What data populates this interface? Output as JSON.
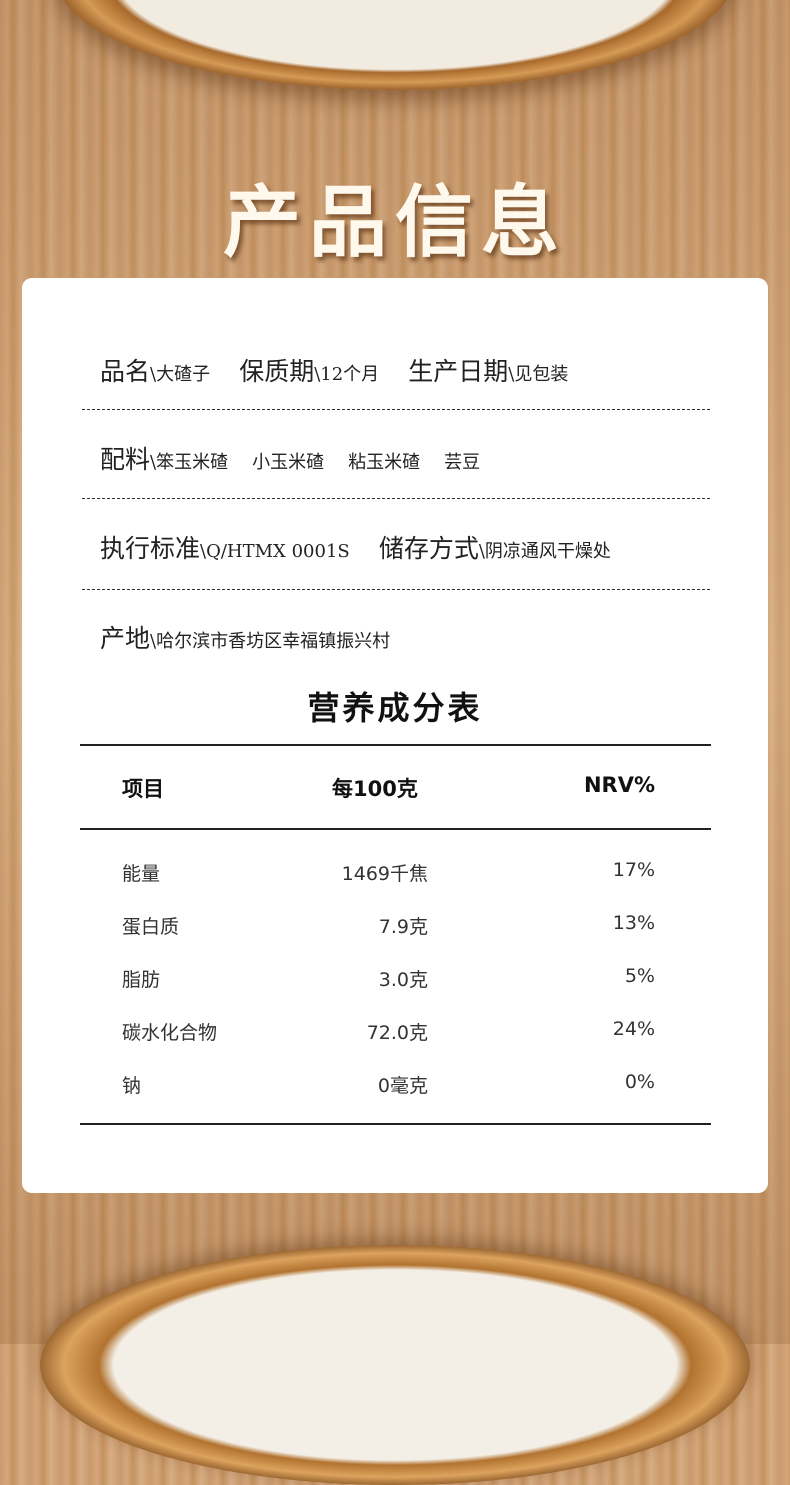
{
  "title": "产品信息",
  "info": {
    "name_label": "品名",
    "name": "大碴子",
    "shelf_label": "保质期",
    "shelf": "12个月",
    "date_label": "生产日期",
    "date": "见包装",
    "ingredients_label": "配料",
    "ingredients": [
      "笨玉米碴",
      "小玉米碴",
      "粘玉米碴",
      "芸豆"
    ],
    "standard_label": "执行标准",
    "standard": "Q/HTMX 0001S",
    "storage_label": "储存方式",
    "storage": "阴凉通风干燥处",
    "origin_label": "产地",
    "origin": "哈尔滨市香坊区幸福镇振兴村"
  },
  "nutrition": {
    "title": "营养成分表",
    "headers": [
      "项目",
      "每100克",
      "NRV%"
    ],
    "rows": [
      [
        "能量",
        "1469千焦",
        "17%"
      ],
      [
        "蛋白质",
        "7.9克",
        "13%"
      ],
      [
        "脂肪",
        "3.0克",
        "5%"
      ],
      [
        "碳水化合物",
        "72.0克",
        "24%"
      ],
      [
        "钠",
        "0毫克",
        "0%"
      ]
    ]
  }
}
